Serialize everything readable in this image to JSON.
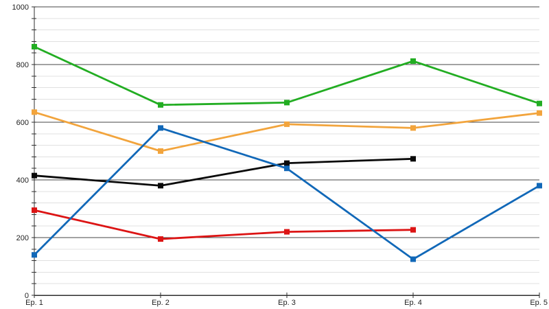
{
  "page": {
    "background": "#ffffff",
    "title": ""
  },
  "chart_data": {
    "type": "line",
    "title": "",
    "xlabel": "",
    "ylabel": "",
    "categories": [
      "Ep. 1",
      "Ep. 2",
      "Ep. 3",
      "Ep. 4",
      "Ep. 5"
    ],
    "series": [
      {
        "name": "green",
        "color": "#22AD22",
        "values": [
          862,
          660,
          668,
          812,
          665
        ]
      },
      {
        "name": "orange",
        "color": "#F2A43C",
        "values": [
          635,
          500,
          593,
          580,
          632
        ]
      },
      {
        "name": "black",
        "color": "#0A0A0A",
        "values": [
          415,
          380,
          458,
          473,
          null
        ]
      },
      {
        "name": "red",
        "color": "#DC1414",
        "values": [
          295,
          195,
          220,
          227,
          null
        ]
      },
      {
        "name": "blue",
        "color": "#1168B8",
        "values": [
          140,
          580,
          440,
          125,
          380
        ]
      }
    ],
    "ylim": [
      0,
      1000
    ],
    "y_major_interval": 200,
    "y_minor_interval": 40,
    "y_tick_labels": [
      "0",
      "200",
      "400",
      "600",
      "800",
      "1000"
    ],
    "grid": {
      "on": true,
      "major_color": "#454545",
      "minor_color": "#e0e0e0"
    },
    "axis_color": "#2e2e2e",
    "label_color": "#222222",
    "legend": "none",
    "marker": "square",
    "line_width": 2.8,
    "marker_size": 8
  }
}
